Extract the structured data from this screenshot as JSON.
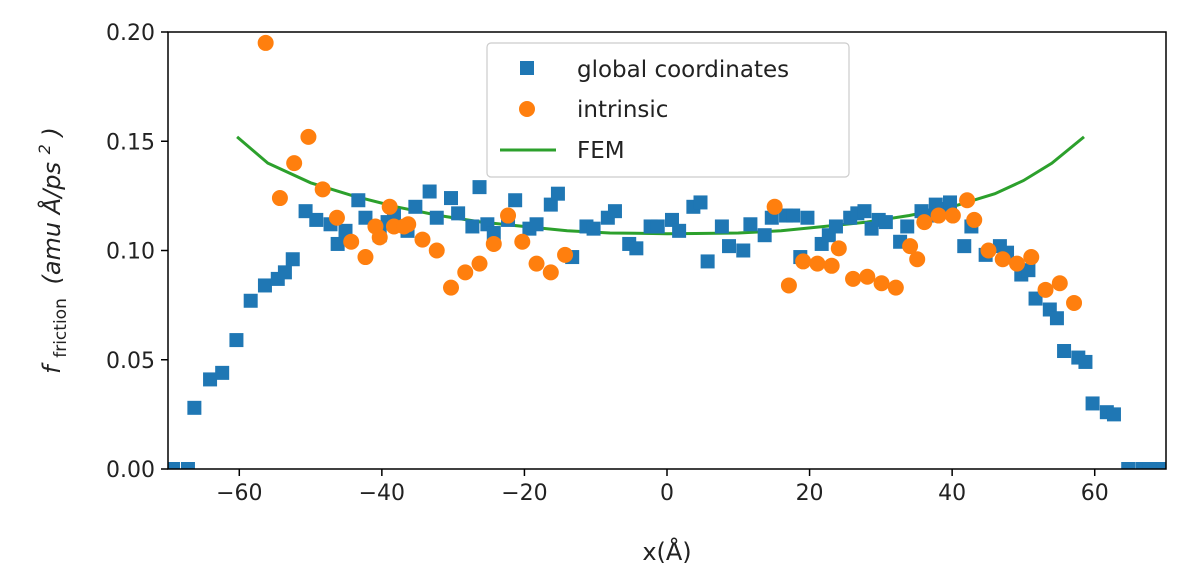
{
  "chart_data": {
    "type": "scatter",
    "xlim": [
      -70,
      70
    ],
    "ylim": [
      0,
      0.2
    ],
    "xticks": [
      -60,
      -40,
      -20,
      0,
      20,
      40,
      60
    ],
    "yticks": [
      0,
      0.05,
      0.1,
      0.15,
      0.2
    ],
    "xtick_labels": [
      "−60",
      "−40",
      "−20",
      "0",
      "20",
      "40",
      "60"
    ],
    "ytick_labels": [
      "0.00",
      "0.05",
      "0.10",
      "0.15",
      "0.20"
    ],
    "xlabel": "x(Å)",
    "ylabel": {
      "main": "f",
      "subscript": "friction",
      "units": "(amu Å/ps",
      "units_sup": "2",
      "units_close": ")"
    },
    "legend_position": "upper center",
    "grid": false,
    "series": [
      {
        "name": "global coordinates",
        "marker": "square",
        "color": "#1f77b4",
        "x": [
          -69.3,
          -67.2,
          -66.3,
          -64.1,
          -62.4,
          -60.4,
          -58.4,
          -56.4,
          -54.6,
          -53.6,
          -52.5,
          -50.7,
          -49.2,
          -47.2,
          -46.2,
          -45.1,
          -43.3,
          -42.3,
          -40.3,
          -39.2,
          -38.3,
          -36.4,
          -35.3,
          -33.3,
          -32.3,
          -30.3,
          -29.3,
          -27.3,
          -26.3,
          -25.2,
          -24.3,
          -22.3,
          -21.3,
          -19.3,
          -18.3,
          -16.3,
          -15.3,
          -13.3,
          -11.3,
          -10.3,
          -8.3,
          -7.3,
          -5.3,
          -4.3,
          -2.3,
          -1.3,
          0.7,
          1.7,
          3.7,
          4.7,
          5.7,
          7.7,
          8.7,
          10.7,
          11.7,
          13.7,
          14.7,
          16.7,
          17.7,
          18.7,
          19.7,
          21.7,
          22.7,
          23.7,
          25.7,
          26.7,
          27.7,
          28.7,
          29.7,
          30.7,
          32.7,
          33.7,
          35.7,
          36.7,
          37.7,
          38.7,
          39.7,
          41.7,
          42.7,
          44.7,
          46.7,
          47.7,
          49.7,
          50.7,
          51.7,
          53.7,
          54.7,
          55.7,
          57.7,
          58.7,
          59.7,
          61.7,
          62.7,
          64.7,
          66.7,
          67.7,
          68.7,
          69.7
        ],
        "y": [
          0.0,
          0.0,
          0.028,
          0.041,
          0.044,
          0.059,
          0.077,
          0.084,
          0.087,
          0.09,
          0.096,
          0.118,
          0.114,
          0.112,
          0.103,
          0.109,
          0.123,
          0.115,
          0.107,
          0.113,
          0.116,
          0.109,
          0.12,
          0.127,
          0.115,
          0.124,
          0.117,
          0.111,
          0.129,
          0.112,
          0.108,
          0.114,
          0.123,
          0.11,
          0.112,
          0.121,
          0.126,
          0.097,
          0.111,
          0.11,
          0.115,
          0.118,
          0.103,
          0.101,
          0.111,
          0.111,
          0.114,
          0.109,
          0.12,
          0.122,
          0.095,
          0.111,
          0.102,
          0.1,
          0.112,
          0.107,
          0.115,
          0.116,
          0.116,
          0.097,
          0.115,
          0.103,
          0.107,
          0.111,
          0.115,
          0.117,
          0.118,
          0.11,
          0.114,
          0.113,
          0.104,
          0.111,
          0.118,
          0.116,
          0.121,
          0.119,
          0.122,
          0.102,
          0.111,
          0.098,
          0.102,
          0.099,
          0.089,
          0.091,
          0.078,
          0.073,
          0.069,
          0.054,
          0.051,
          0.049,
          0.03,
          0.026,
          0.025,
          0.0,
          0.0,
          0.0,
          0.0,
          0.0
        ]
      },
      {
        "name": "intrinsic",
        "marker": "circle",
        "color": "#ff7f0e",
        "x": [
          -56.3,
          -54.3,
          -52.3,
          -50.3,
          -48.3,
          -46.3,
          -44.3,
          -42.3,
          -40.3,
          -38.3,
          -36.3,
          -34.3,
          -32.3,
          -30.3,
          -28.3,
          -26.3,
          -24.3,
          -22.3,
          -20.3,
          -18.3,
          -16.3,
          -14.3,
          -38.9,
          -40.9,
          -36.9,
          17.1,
          19.1,
          21.1,
          23.1,
          24.1,
          26.1,
          28.1,
          30.1,
          32.1,
          34.1,
          35.1,
          36.1,
          38.1,
          40.1,
          42.1,
          43.1,
          45.1,
          47.1,
          49.1,
          51.1,
          53.1,
          55.1,
          57.1,
          15.1
        ],
        "y": [
          0.195,
          0.124,
          0.14,
          0.152,
          0.128,
          0.115,
          0.104,
          0.097,
          0.106,
          0.111,
          0.112,
          0.105,
          0.1,
          0.083,
          0.09,
          0.094,
          0.103,
          0.116,
          0.104,
          0.094,
          0.09,
          0.098,
          0.12,
          0.111,
          0.111,
          0.084,
          0.095,
          0.094,
          0.093,
          0.101,
          0.087,
          0.088,
          0.085,
          0.083,
          0.102,
          0.096,
          0.113,
          0.116,
          0.116,
          0.123,
          0.114,
          0.1,
          0.096,
          0.094,
          0.097,
          0.082,
          0.085,
          0.076,
          0.12
        ]
      },
      {
        "name": "FEM",
        "marker": "line",
        "color": "#2ca02c",
        "x": [
          -60.3,
          -56,
          -50,
          -44,
          -38,
          -32,
          -26,
          -20,
          -14,
          -8,
          -2,
          0,
          4,
          10,
          16,
          22,
          28,
          34,
          40,
          46,
          50,
          54,
          58.5
        ],
        "y": [
          0.152,
          0.14,
          0.131,
          0.125,
          0.12,
          0.116,
          0.113,
          0.111,
          0.109,
          0.108,
          0.1078,
          0.1077,
          0.1078,
          0.108,
          0.109,
          0.111,
          0.113,
          0.116,
          0.12,
          0.126,
          0.132,
          0.14,
          0.152
        ]
      }
    ]
  }
}
